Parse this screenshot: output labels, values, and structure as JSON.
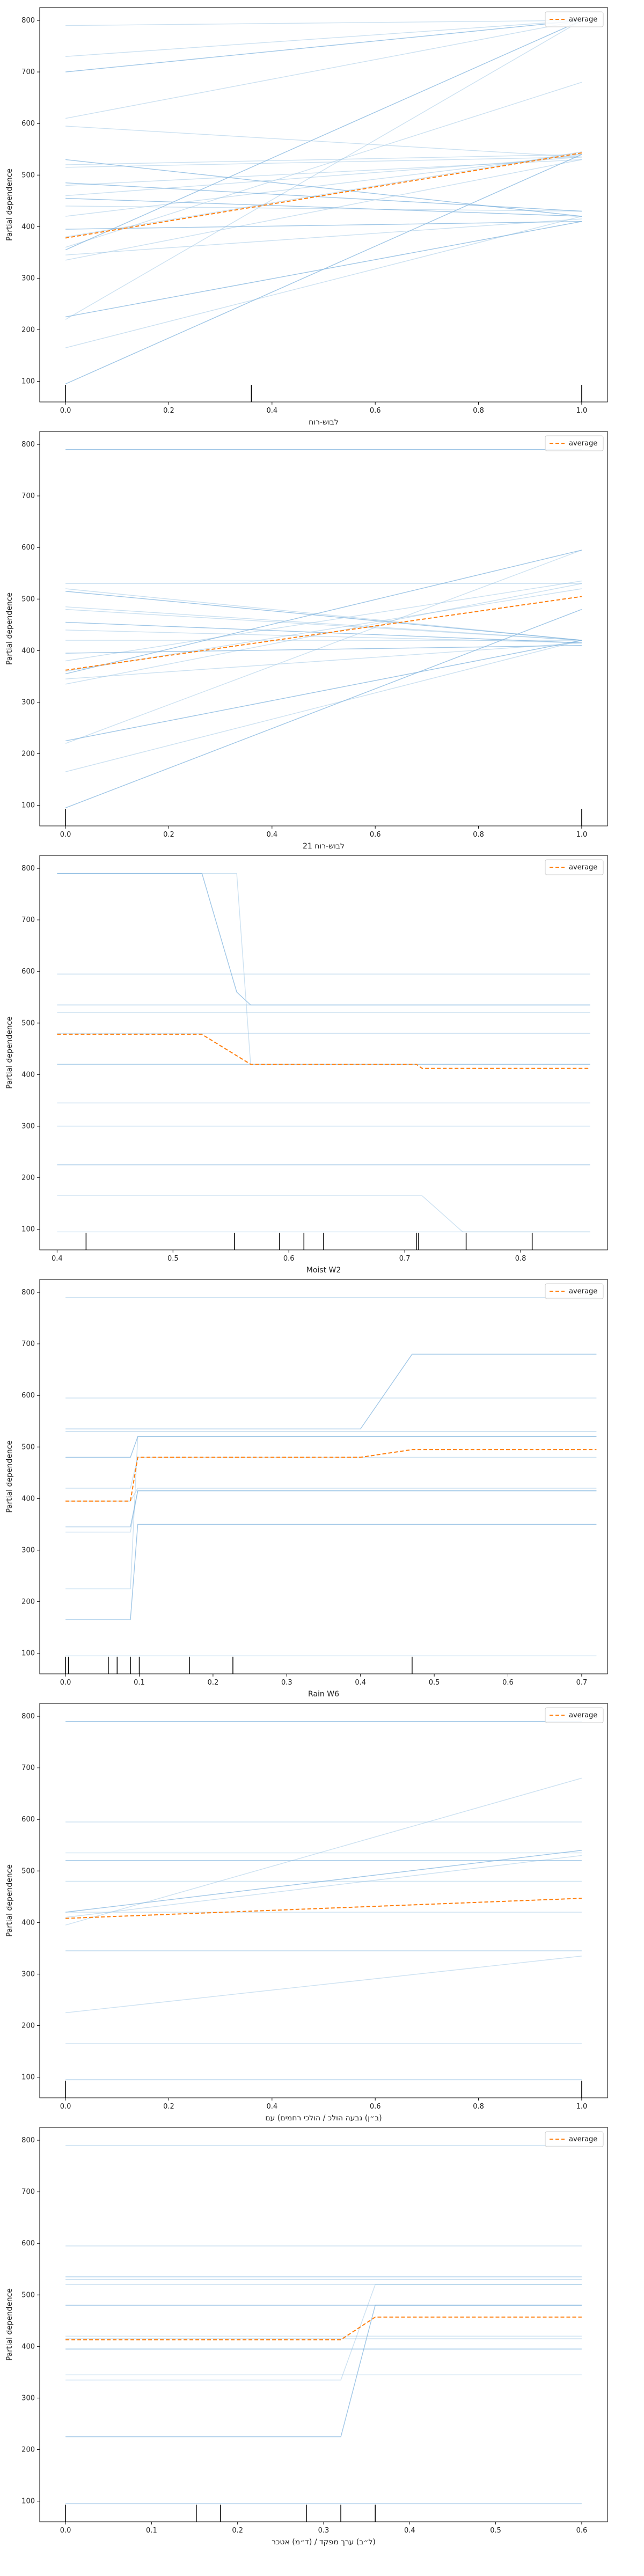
{
  "colors": {
    "ice": "#7fb3dd",
    "average": "#ff7f0e",
    "rug": "#000000",
    "frame": "#000000"
  },
  "chart_data": [
    {
      "type": "line",
      "xlabel": "לבוש-רוח",
      "ylabel": "Partial dependence",
      "xlim": [
        -0.05,
        1.05
      ],
      "ylim": [
        60,
        825
      ],
      "xticks": [
        0.0,
        0.2,
        0.4,
        0.6,
        0.8,
        1.0
      ],
      "xtick_labels": [
        "0.0",
        "0.2",
        "0.4",
        "0.6",
        "0.8",
        "1.0"
      ],
      "yticks": [
        100,
        200,
        300,
        400,
        500,
        600,
        700,
        800
      ],
      "ytick_labels": [
        "100",
        "200",
        "300",
        "400",
        "500",
        "600",
        "700",
        "800"
      ],
      "legend": {
        "entries": [
          "average"
        ],
        "position": "top-right"
      },
      "ice_x": [
        0.0,
        1.0
      ],
      "ice_lines": [
        [
          95,
          540
        ],
        [
          165,
          420
        ],
        [
          220,
          800
        ],
        [
          225,
          410
        ],
        [
          335,
          530
        ],
        [
          345,
          415
        ],
        [
          355,
          800
        ],
        [
          360,
          680
        ],
        [
          380,
          545
        ],
        [
          395,
          410
        ],
        [
          420,
          540
        ],
        [
          440,
          430
        ],
        [
          455,
          420
        ],
        [
          460,
          535
        ],
        [
          480,
          530
        ],
        [
          485,
          430
        ],
        [
          515,
          535
        ],
        [
          520,
          540
        ],
        [
          530,
          420
        ],
        [
          595,
          535
        ],
        [
          610,
          800
        ],
        [
          700,
          800
        ],
        [
          730,
          800
        ],
        [
          790,
          800
        ]
      ],
      "average": {
        "x": [
          0.0,
          1.0
        ],
        "y": [
          378,
          543
        ]
      },
      "rug": [
        0.0,
        0.36,
        1.0
      ]
    },
    {
      "type": "line",
      "xlabel": "לבוש-רוח 21",
      "ylabel": "Partial dependence",
      "xlim": [
        -0.05,
        1.05
      ],
      "ylim": [
        60,
        825
      ],
      "xticks": [
        0.0,
        0.2,
        0.4,
        0.6,
        0.8,
        1.0
      ],
      "xtick_labels": [
        "0.0",
        "0.2",
        "0.4",
        "0.6",
        "0.8",
        "1.0"
      ],
      "yticks": [
        100,
        200,
        300,
        400,
        500,
        600,
        700,
        800
      ],
      "ytick_labels": [
        "100",
        "200",
        "300",
        "400",
        "500",
        "600",
        "700",
        "800"
      ],
      "legend": {
        "entries": [
          "average"
        ],
        "position": "top-right"
      },
      "ice_x": [
        0.0,
        1.0
      ],
      "ice_lines": [
        [
          95,
          480
        ],
        [
          165,
          420
        ],
        [
          220,
          595
        ],
        [
          225,
          420
        ],
        [
          335,
          530
        ],
        [
          345,
          415
        ],
        [
          355,
          595
        ],
        [
          360,
          520
        ],
        [
          380,
          535
        ],
        [
          395,
          410
        ],
        [
          420,
          420
        ],
        [
          440,
          415
        ],
        [
          455,
          415
        ],
        [
          480,
          420
        ],
        [
          485,
          420
        ],
        [
          515,
          420
        ],
        [
          520,
          420
        ],
        [
          530,
          530
        ],
        [
          790,
          790
        ]
      ],
      "average": {
        "x": [
          0.0,
          1.0
        ],
        "y": [
          362,
          505
        ]
      },
      "rug": [
        0.0,
        1.0
      ]
    },
    {
      "type": "line",
      "xlabel": "Moist W2",
      "ylabel": "Partial dependence",
      "xlim": [
        0.385,
        0.875
      ],
      "ylim": [
        60,
        825
      ],
      "xticks": [
        0.4,
        0.5,
        0.6,
        0.7,
        0.8
      ],
      "xtick_labels": [
        "0.4",
        "0.5",
        "0.6",
        "0.7",
        "0.8"
      ],
      "yticks": [
        100,
        200,
        300,
        400,
        500,
        600,
        700,
        800
      ],
      "ytick_labels": [
        "100",
        "200",
        "300",
        "400",
        "500",
        "600",
        "700",
        "800"
      ],
      "legend": {
        "entries": [
          "average"
        ],
        "position": "top-right"
      },
      "ice_x": [
        0.4,
        0.525,
        0.555,
        0.567,
        0.71,
        0.715,
        0.75,
        0.86
      ],
      "ice_lines": [
        [
          790,
          790,
          560,
          535,
          535,
          535,
          535,
          535
        ],
        [
          790,
          790,
          790,
          420,
          420,
          420,
          420,
          420
        ],
        [
          595,
          595,
          595,
          595,
          595,
          595,
          595,
          595
        ],
        [
          535,
          535,
          535,
          535,
          535,
          535,
          535,
          535
        ],
        [
          520,
          520,
          520,
          520,
          520,
          520,
          520,
          520
        ],
        [
          480,
          480,
          480,
          480,
          480,
          480,
          480,
          480
        ],
        [
          420,
          420,
          420,
          420,
          420,
          420,
          420,
          420
        ],
        [
          345,
          345,
          345,
          345,
          345,
          345,
          345,
          345
        ],
        [
          300,
          300,
          300,
          300,
          300,
          300,
          300,
          300
        ],
        [
          225,
          225,
          225,
          225,
          225,
          225,
          225,
          225
        ],
        [
          165,
          165,
          165,
          165,
          165,
          165,
          95,
          95
        ],
        [
          95,
          95,
          95,
          95,
          95,
          95,
          95,
          95
        ]
      ],
      "average": {
        "x": [
          0.4,
          0.525,
          0.567,
          0.71,
          0.715,
          0.86
        ],
        "y": [
          478,
          478,
          420,
          420,
          412,
          412
        ]
      },
      "rug": [
        0.425,
        0.553,
        0.592,
        0.613,
        0.63,
        0.71,
        0.712,
        0.753,
        0.81
      ]
    },
    {
      "type": "line",
      "xlabel": "Rain W6",
      "ylabel": "Partial dependence",
      "xlim": [
        -0.035,
        0.735
      ],
      "ylim": [
        60,
        825
      ],
      "xticks": [
        0.0,
        0.1,
        0.2,
        0.3,
        0.4,
        0.5,
        0.6,
        0.7
      ],
      "xtick_labels": [
        "0.0",
        "0.1",
        "0.2",
        "0.3",
        "0.4",
        "0.5",
        "0.6",
        "0.7"
      ],
      "yticks": [
        100,
        200,
        300,
        400,
        500,
        600,
        700,
        800
      ],
      "ytick_labels": [
        "100",
        "200",
        "300",
        "400",
        "500",
        "600",
        "700",
        "800"
      ],
      "legend": {
        "entries": [
          "average"
        ],
        "position": "top-right"
      },
      "ice_x": [
        0.0,
        0.088,
        0.098,
        0.4,
        0.47,
        0.72
      ],
      "ice_lines": [
        [
          535,
          535,
          535,
          535,
          680,
          680
        ],
        [
          595,
          595,
          595,
          595,
          595,
          595
        ],
        [
          530,
          530,
          530,
          530,
          530,
          530
        ],
        [
          480,
          480,
          520,
          520,
          520,
          520
        ],
        [
          420,
          420,
          480,
          480,
          480,
          480
        ],
        [
          395,
          395,
          420,
          420,
          420,
          420
        ],
        [
          345,
          345,
          415,
          415,
          415,
          415
        ],
        [
          335,
          335,
          415,
          415,
          415,
          415
        ],
        [
          225,
          225,
          520,
          520,
          520,
          520
        ],
        [
          165,
          165,
          350,
          350,
          350,
          350
        ],
        [
          95,
          95,
          95,
          95,
          95,
          95
        ],
        [
          790,
          790,
          790,
          790,
          790,
          790
        ]
      ],
      "average": {
        "x": [
          0.0,
          0.088,
          0.098,
          0.4,
          0.47,
          0.72
        ],
        "y": [
          395,
          395,
          480,
          480,
          495,
          495
        ]
      },
      "rug": [
        0.0,
        0.004,
        0.058,
        0.07,
        0.088,
        0.1,
        0.168,
        0.227,
        0.47
      ]
    },
    {
      "type": "line",
      "xlabel": "(ב״ן) גבעה הולכ / הולכי רחמים) עם",
      "ylabel": "Partial dependence",
      "xlim": [
        -0.05,
        1.05
      ],
      "ylim": [
        60,
        825
      ],
      "xticks": [
        0.0,
        0.2,
        0.4,
        0.6,
        0.8,
        1.0
      ],
      "xtick_labels": [
        "0.0",
        "0.2",
        "0.4",
        "0.6",
        "0.8",
        "1.0"
      ],
      "yticks": [
        100,
        200,
        300,
        400,
        500,
        600,
        700,
        800
      ],
      "ytick_labels": [
        "100",
        "200",
        "300",
        "400",
        "500",
        "600",
        "700",
        "800"
      ],
      "legend": {
        "entries": [
          "average"
        ],
        "position": "top-right"
      },
      "ice_x": [
        0.0,
        1.0
      ],
      "ice_lines": [
        [
          95,
          95
        ],
        [
          165,
          165
        ],
        [
          225,
          335
        ],
        [
          345,
          345
        ],
        [
          395,
          680
        ],
        [
          410,
          530
        ],
        [
          420,
          540
        ],
        [
          420,
          420
        ],
        [
          480,
          480
        ],
        [
          520,
          520
        ],
        [
          535,
          535
        ],
        [
          595,
          595
        ],
        [
          790,
          790
        ]
      ],
      "average": {
        "x": [
          0.0,
          1.0
        ],
        "y": [
          408,
          447
        ]
      },
      "rug": [
        0.0,
        1.0
      ]
    },
    {
      "type": "line",
      "xlabel": "(ל״ב) ערך מפקד / (ד״מ) אטכר",
      "ylabel": "Partial dependence",
      "xlim": [
        -0.03,
        0.63
      ],
      "ylim": [
        60,
        825
      ],
      "xticks": [
        0.0,
        0.1,
        0.2,
        0.3,
        0.4,
        0.5,
        0.6
      ],
      "xtick_labels": [
        "0.0",
        "0.1",
        "0.2",
        "0.3",
        "0.4",
        "0.5",
        "0.6"
      ],
      "yticks": [
        100,
        200,
        300,
        400,
        500,
        600,
        700,
        800
      ],
      "ytick_labels": [
        "100",
        "200",
        "300",
        "400",
        "500",
        "600",
        "700",
        "800"
      ],
      "legend": {
        "entries": [
          "average"
        ],
        "position": "top-right"
      },
      "ice_x": [
        0.0,
        0.32,
        0.36,
        0.6
      ],
      "ice_lines": [
        [
          225,
          225,
          480,
          480
        ],
        [
          335,
          335,
          520,
          520
        ],
        [
          345,
          345,
          345,
          345
        ],
        [
          395,
          395,
          395,
          395
        ],
        [
          415,
          415,
          415,
          415
        ],
        [
          420,
          420,
          420,
          420
        ],
        [
          480,
          480,
          480,
          480
        ],
        [
          520,
          520,
          520,
          520
        ],
        [
          530,
          530,
          530,
          530
        ],
        [
          535,
          535,
          535,
          535
        ],
        [
          595,
          595,
          595,
          595
        ],
        [
          790,
          790,
          790,
          790
        ],
        [
          95,
          95,
          95,
          95
        ]
      ],
      "average": {
        "x": [
          0.0,
          0.32,
          0.36,
          0.6
        ],
        "y": [
          413,
          413,
          457,
          457
        ]
      },
      "rug": [
        0.0,
        0.152,
        0.18,
        0.28,
        0.32,
        0.36
      ]
    }
  ]
}
